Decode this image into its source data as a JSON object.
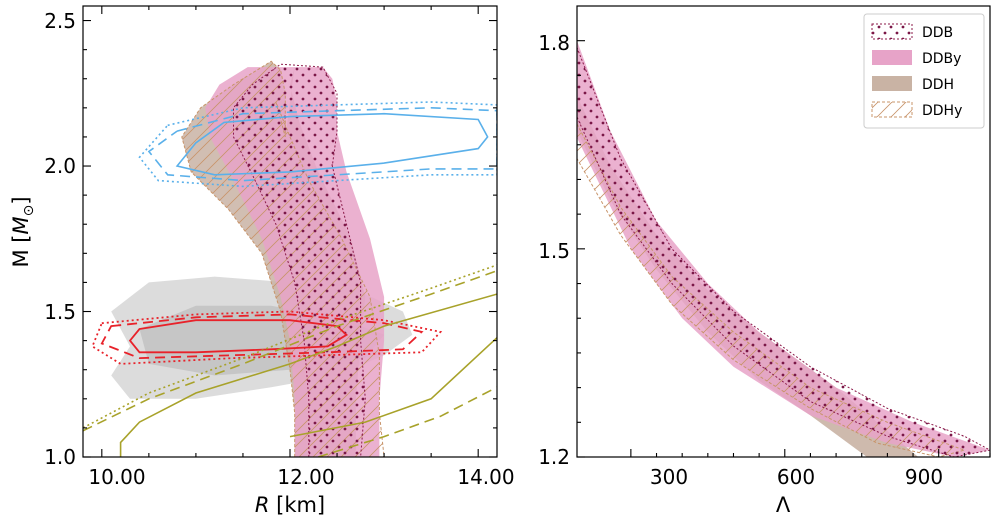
{
  "chart_data": [
    {
      "type": "line",
      "panel": "left",
      "xlabel_italic": "R",
      "xlabel_unit": "[km]",
      "ylabel_main": "M [",
      "ylabel_italic": "M",
      "ylabel_sub": "⊙",
      "ylabel_end": "]",
      "xlim": [
        9.8,
        14.2
      ],
      "ylim": [
        1.0,
        2.55
      ],
      "xticks": [
        10.0,
        12.0,
        14.0
      ],
      "xtick_labels": [
        "10.00",
        "12.00",
        "14.00"
      ],
      "yticks": [
        1.0,
        1.5,
        2.0,
        2.5
      ],
      "ytick_labels": [
        "1.0",
        "1.5",
        "2.0",
        "2.5"
      ],
      "colors": {
        "DDB": "#8b1a4a",
        "DDBy": "#e7a3c8",
        "DDH": "#c9b3a4",
        "DDHy": "#c8946a",
        "nicer_massive": "#5ab0ea",
        "nicer_light": "#e8222a",
        "gw": "#a8a22a",
        "shade": "#c0c0c0"
      },
      "series": [
        {
          "name": "DDH band left",
          "x": [
            12.05,
            12.05,
            12.0,
            11.9,
            11.7,
            11.35,
            10.95,
            10.85,
            11.05,
            11.4,
            11.65,
            11.8,
            11.9,
            11.95,
            11.95
          ],
          "y": [
            1.0,
            1.15,
            1.3,
            1.5,
            1.7,
            1.85,
            1.98,
            2.1,
            2.2,
            2.28,
            2.33,
            2.36,
            2.33,
            2.25,
            2.1
          ]
        },
        {
          "name": "DDH band right",
          "x": [
            12.7,
            12.7,
            12.75,
            12.8,
            12.65,
            12.3,
            12.1,
            12.0,
            12.05
          ],
          "y": [
            1.0,
            1.2,
            1.4,
            1.55,
            1.75,
            1.98,
            2.15,
            2.28,
            2.34
          ]
        },
        {
          "name": "DDBy band left",
          "x": [
            12.05,
            12.05,
            12.0,
            11.9,
            11.7,
            11.4,
            11.15,
            11.1,
            11.25,
            11.55,
            11.7
          ],
          "y": [
            1.0,
            1.2,
            1.4,
            1.55,
            1.75,
            1.95,
            2.1,
            2.2,
            2.28,
            2.34,
            2.34
          ]
        },
        {
          "name": "DDBy band right",
          "x": [
            12.95,
            12.95,
            13.0,
            13.0,
            12.85,
            12.6,
            12.5,
            12.5,
            12.45,
            12.35
          ],
          "y": [
            1.0,
            1.2,
            1.4,
            1.55,
            1.75,
            1.98,
            2.12,
            2.22,
            2.3,
            2.34
          ]
        },
        {
          "name": "DDHy band right",
          "x": [
            13.0,
            12.95,
            12.95,
            12.85,
            12.55,
            12.2,
            12.0,
            11.85
          ],
          "y": [
            1.0,
            1.15,
            1.35,
            1.55,
            1.75,
            1.95,
            2.1,
            2.22
          ]
        },
        {
          "name": "DDB region",
          "x": [
            12.2,
            12.2,
            12.15,
            12.05,
            11.85,
            11.6,
            11.4,
            11.4,
            11.6,
            11.9,
            12.35,
            12.5,
            12.5,
            12.45,
            12.6,
            12.75,
            12.75,
            12.8,
            12.75,
            12.85
          ],
          "y": [
            1.0,
            1.2,
            1.4,
            1.6,
            1.8,
            1.97,
            2.1,
            2.2,
            2.28,
            2.35,
            2.34,
            2.25,
            2.12,
            2.0,
            1.8,
            1.6,
            1.4,
            1.2,
            1.0,
            1.0
          ]
        },
        {
          "name": "NICER J0740 solid",
          "x": [
            11.3,
            12.0,
            13.0,
            14.0,
            14.1,
            14.0,
            13.0,
            12.0,
            11.2,
            10.8,
            11.0,
            11.3
          ],
          "y": [
            2.15,
            2.17,
            2.18,
            2.16,
            2.1,
            2.06,
            2.01,
            1.98,
            1.97,
            2.0,
            2.08,
            2.15
          ]
        },
        {
          "name": "NICER J0740 dashed",
          "x": [
            10.8,
            11.5,
            12.5,
            13.5,
            14.2,
            14.2,
            13.5,
            12.5,
            11.5,
            10.7,
            10.5,
            10.8
          ],
          "y": [
            2.12,
            2.18,
            2.19,
            2.2,
            2.19,
            1.99,
            1.99,
            1.97,
            1.95,
            1.97,
            2.05,
            2.12
          ]
        },
        {
          "name": "NICER J0740 dotted",
          "x": [
            10.7,
            11.5,
            12.5,
            13.5,
            14.2,
            14.2,
            13.5,
            12.5,
            11.5,
            10.6,
            10.4,
            10.7
          ],
          "y": [
            2.14,
            2.2,
            2.21,
            2.22,
            2.21,
            1.97,
            1.97,
            1.95,
            1.93,
            1.95,
            2.03,
            2.14
          ]
        },
        {
          "name": "NICER J0030 solid",
          "x": [
            10.4,
            11.0,
            12.0,
            12.5,
            12.6,
            12.4,
            11.8,
            11.0,
            10.4,
            10.3,
            10.4
          ],
          "y": [
            1.44,
            1.47,
            1.47,
            1.45,
            1.42,
            1.38,
            1.37,
            1.36,
            1.36,
            1.4,
            1.44
          ]
        },
        {
          "name": "NICER J0030 dashed",
          "x": [
            10.1,
            11.0,
            12.0,
            13.0,
            13.4,
            13.2,
            12.4,
            11.4,
            10.4,
            10.0,
            10.1
          ],
          "y": [
            1.45,
            1.48,
            1.49,
            1.46,
            1.43,
            1.37,
            1.36,
            1.35,
            1.34,
            1.39,
            1.45
          ]
        },
        {
          "name": "NICER J0030 dotted",
          "x": [
            10.0,
            11.0,
            12.0,
            13.0,
            13.6,
            13.4,
            12.4,
            11.4,
            10.2,
            9.9,
            10.0
          ],
          "y": [
            1.46,
            1.49,
            1.5,
            1.47,
            1.43,
            1.36,
            1.35,
            1.34,
            1.32,
            1.38,
            1.46
          ]
        },
        {
          "name": "GW170817 solid",
          "x": [
            10.2,
            10.2,
            10.4,
            11.0,
            12.0,
            12.5,
            13.0,
            14.2
          ],
          "y": [
            1.0,
            1.05,
            1.12,
            1.22,
            1.32,
            1.38,
            1.45,
            1.56
          ]
        },
        {
          "name": "GW170817 solid lower",
          "x": [
            12.0,
            12.8,
            13.5,
            14.2
          ],
          "y": [
            1.07,
            1.12,
            1.2,
            1.41
          ]
        }
      ]
    },
    {
      "type": "area",
      "panel": "right",
      "xlabel": "Λ",
      "xlim": [
        195,
        1000
      ],
      "ylim": [
        1.2,
        1.85
      ],
      "xticks": [
        300,
        600,
        900
      ],
      "xtick_labels": [
        "300",
        "600",
        "900"
      ],
      "yticks": [
        1.2,
        1.5,
        1.8
      ],
      "ytick_labels": [
        "1.2",
        "1.5",
        "1.8"
      ],
      "legend_position": "top-right",
      "series": [
        {
          "name": "DDH upper",
          "x": [
            195,
            260,
            350,
            450,
            550,
            650,
            760
          ],
          "y": [
            1.67,
            1.57,
            1.47,
            1.38,
            1.31,
            1.26,
            1.2
          ]
        },
        {
          "name": "DDH lower",
          "x": [
            195,
            260,
            350,
            450,
            550,
            700,
            860
          ],
          "y": [
            1.72,
            1.62,
            1.52,
            1.44,
            1.38,
            1.3,
            1.2
          ]
        },
        {
          "name": "DDBy upper",
          "x": [
            195,
            260,
            350,
            450,
            550,
            700,
            850,
            1000
          ],
          "y": [
            1.8,
            1.67,
            1.54,
            1.45,
            1.38,
            1.3,
            1.25,
            1.21
          ]
        },
        {
          "name": "DDBy lower",
          "x": [
            195,
            300,
            400,
            500,
            650,
            800,
            930
          ],
          "y": [
            1.66,
            1.5,
            1.4,
            1.33,
            1.26,
            1.22,
            1.2
          ]
        }
      ]
    }
  ],
  "legend": {
    "items": [
      {
        "label": "DDB",
        "style": "dotted"
      },
      {
        "label": "DDBy",
        "style": "filled-pink"
      },
      {
        "label": "DDH",
        "style": "filled-tan"
      },
      {
        "label": "DDHy",
        "style": "hatched"
      }
    ]
  }
}
